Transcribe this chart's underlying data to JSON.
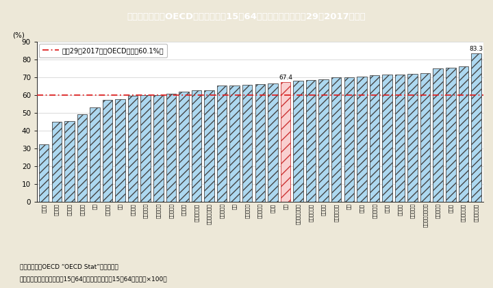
{
  "title": "Ｉ－２－２図　OECD諸国の女性（15～64歳）の就業率（平成29（2017）年）",
  "ylabel": "(%)",
  "oecd_avg": 60.1,
  "oecd_avg_label": "平成29（2017）年OECD平均（60.1%）",
  "japan_label": "67.4",
  "iceland_label": "83.3",
  "ylim": [
    0,
    90
  ],
  "yticks": [
    0,
    10,
    20,
    30,
    40,
    50,
    60,
    70,
    80,
    90
  ],
  "background_color": "#ede8d8",
  "plot_bg_color": "#ffffff",
  "bar_color": "#add8f0",
  "bar_hatch": "///",
  "bar_edge_color": "#444444",
  "japan_bar_color": "#f9d0d0",
  "japan_bar_edge_color": "#cc3333",
  "ref_line_color": "#dd2222",
  "title_bg_color": "#3bbccc",
  "title_text_color": "#ffffff",
  "footnote1": "（備考）１．OECD “OECD Stat”より作成。",
  "footnote2": "　　　　２．就業率は，、15～64歳就業者数」／、15～64歳人口」×100。",
  "countries": [
    "トルコ",
    "ギリシャ",
    "メキシコ",
    "イタリア",
    "チリ",
    "スペイン",
    "韓国",
    "ベルギー",
    "ポーランド",
    "スロバキア",
    "ハンガリー",
    "フランス",
    "アイルランド",
    "ルクセンブルク",
    "ポルトガル",
    "米国",
    "イスラエル",
    "スロベニア",
    "チェコ",
    "日本",
    "オーストラリア",
    "オーストリア",
    "ラトビア",
    "フィンランド",
    "英国",
    "カナダ",
    "エストニア",
    "ドイツ",
    "オランダ",
    "デンマーク",
    "ニュージーランド",
    "ノルウェー",
    "スイス",
    "スウェーデン",
    "アイスランド"
  ],
  "values": [
    32.2,
    44.8,
    45.2,
    49.3,
    53.1,
    57.3,
    57.8,
    59.5,
    59.9,
    60.1,
    60.6,
    62.0,
    62.5,
    62.8,
    65.2,
    65.5,
    65.8,
    66.1,
    66.4,
    67.4,
    68.0,
    68.4,
    68.9,
    69.9,
    70.1,
    70.4,
    71.1,
    71.4,
    71.6,
    71.8,
    72.3,
    74.9,
    75.3,
    76.0,
    83.3
  ],
  "japan_index": 19
}
